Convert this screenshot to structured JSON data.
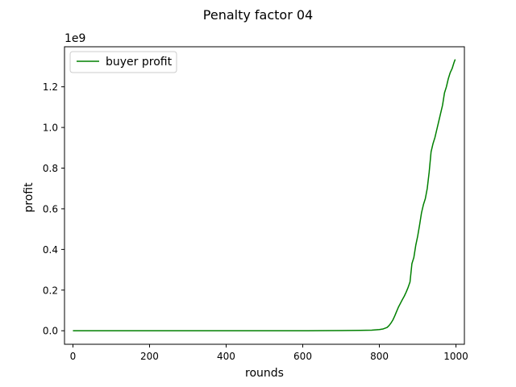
{
  "chart_data": {
    "type": "line",
    "title": "Penalty factor 04",
    "xlabel": "rounds",
    "ylabel": "profit",
    "y_offset_text": "1e9",
    "xlim": [
      -22,
      1022
    ],
    "ylim": [
      -0.0665,
      1.397
    ],
    "y_scale_factor": 1000000000,
    "grid": false,
    "legend_position": "upper-left",
    "x_ticks": [
      0,
      200,
      400,
      600,
      800,
      1000
    ],
    "x_tick_labels": [
      "0",
      "200",
      "400",
      "600",
      "800",
      "1000"
    ],
    "y_ticks": [
      0.0,
      0.2,
      0.4,
      0.6,
      0.8,
      1.0,
      1.2
    ],
    "y_tick_labels": [
      "0.0",
      "0.2",
      "0.4",
      "0.6",
      "0.8",
      "1.0",
      "1.2"
    ],
    "series": [
      {
        "name": "buyer profit",
        "color": "#008000",
        "x": [
          0,
          100,
          200,
          300,
          400,
          500,
          600,
          650,
          700,
          750,
          780,
          800,
          810,
          820,
          825,
          830,
          835,
          840,
          845,
          850,
          855,
          860,
          865,
          870,
          875,
          880,
          885,
          890,
          895,
          900,
          905,
          910,
          915,
          920,
          925,
          930,
          935,
          940,
          945,
          950,
          955,
          960,
          965,
          970,
          975,
          980,
          985,
          990,
          995,
          998
        ],
        "y": [
          0.0,
          0.0,
          0.0,
          0.0,
          0.0,
          0.0,
          0.0,
          0.0005,
          0.001,
          0.002,
          0.003,
          0.006,
          0.009,
          0.016,
          0.025,
          0.037,
          0.052,
          0.072,
          0.095,
          0.117,
          0.135,
          0.153,
          0.17,
          0.19,
          0.213,
          0.24,
          0.33,
          0.36,
          0.42,
          0.465,
          0.52,
          0.58,
          0.62,
          0.65,
          0.7,
          0.78,
          0.88,
          0.92,
          0.95,
          0.99,
          1.03,
          1.07,
          1.11,
          1.17,
          1.2,
          1.24,
          1.27,
          1.29,
          1.32,
          1.335
        ]
      }
    ]
  }
}
